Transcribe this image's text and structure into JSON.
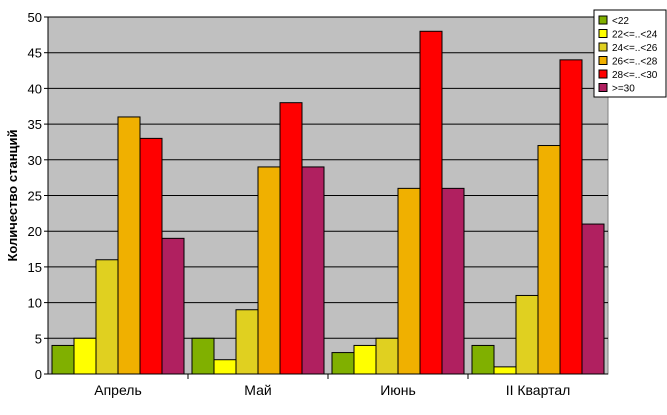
{
  "chart_data": {
    "type": "bar",
    "title": "",
    "xlabel": "",
    "ylabel": "Количество станций",
    "ylim": [
      0,
      50
    ],
    "ytick_step": 5,
    "grid": true,
    "legend_position": "top-right",
    "categories": [
      "Апрель",
      "Май",
      "Июнь",
      "II Квартал"
    ],
    "series": [
      {
        "name": "<22",
        "color": "#80b000",
        "values": [
          4,
          5,
          3,
          4
        ]
      },
      {
        "name": "22<=..<24",
        "color": "#ffff00",
        "values": [
          5,
          2,
          4,
          1
        ]
      },
      {
        "name": "24<=..<26",
        "color": "#e0d020",
        "values": [
          16,
          9,
          5,
          11
        ]
      },
      {
        "name": "26<=..<28",
        "color": "#f0b000",
        "values": [
          36,
          29,
          26,
          32
        ]
      },
      {
        "name": "28<=..<30",
        "color": "#ff0000",
        "values": [
          33,
          38,
          48,
          44
        ]
      },
      {
        "name": ">=30",
        "color": "#b02060",
        "values": [
          19,
          29,
          26,
          21
        ]
      }
    ],
    "plot_background": "#c0c0c0"
  }
}
